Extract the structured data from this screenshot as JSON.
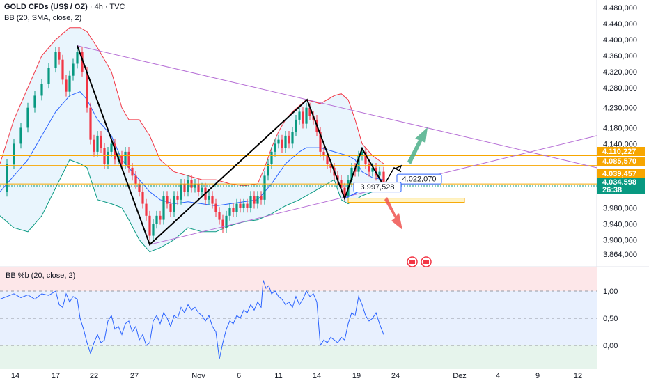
{
  "header": {
    "symbol": "GOLD CFDs (US$ / OZ)",
    "interval": "4h",
    "source": "TVC",
    "indicator_main": "BB (20, SMA, close, 2)",
    "indicator_sub": "BB %b (20, close, 2)"
  },
  "chart_data": {
    "type": "line",
    "price_axis": {
      "ticks": [
        "4.480,000",
        "4.440,000",
        "4.400,000",
        "4.360,000",
        "4.320,000",
        "4.280,000",
        "4.230,000",
        "4.180,000",
        "4.140,000",
        "3.980,000",
        "3.940,000",
        "3.900,000",
        "3.864,000"
      ],
      "tick_values": [
        4480,
        4440,
        4400,
        4360,
        4320,
        4280,
        4230,
        4180,
        4140,
        3980,
        3940,
        3900,
        3864
      ]
    },
    "price_tags": [
      {
        "label": "4.110,227",
        "value": 4110.227,
        "kind": "orange"
      },
      {
        "label": "4.085,570",
        "value": 4085.57,
        "kind": "orange"
      },
      {
        "label": "4.039,457",
        "value": 4039.457,
        "kind": "orange"
      },
      {
        "label": "4.034,598",
        "value": 4034.598,
        "kind": "green"
      },
      {
        "label": "26:38",
        "value": 4016,
        "kind": "green"
      }
    ],
    "chart_labels": [
      {
        "label": "4.022,070",
        "value": 4050
      },
      {
        "label": "3.997,528",
        "value": 4030
      }
    ],
    "x_axis_ticks": [
      "14",
      "17",
      "22",
      "27",
      "Nov",
      "6",
      "11",
      "14",
      "19",
      "24",
      "Dez",
      "4",
      "9",
      "12"
    ],
    "pctb_axis": {
      "ticks": [
        "1,00",
        "0,50",
        "0,00"
      ],
      "tick_values": [
        1.0,
        0.5,
        0.0
      ]
    },
    "zigzag": [
      [
        111,
        4385
      ],
      [
        215,
        3888
      ],
      [
        441,
        4250
      ],
      [
        495,
        4003
      ],
      [
        520,
        4128
      ],
      [
        551,
        4035
      ]
    ],
    "close": [
      [
        0,
        4020
      ],
      [
        10,
        4090
      ],
      [
        20,
        4140
      ],
      [
        30,
        4180
      ],
      [
        40,
        4230
      ],
      [
        50,
        4260
      ],
      [
        60,
        4290
      ],
      [
        70,
        4330
      ],
      [
        80,
        4370
      ],
      [
        85,
        4350
      ],
      [
        90,
        4300
      ],
      [
        95,
        4270
      ],
      [
        100,
        4310
      ],
      [
        105,
        4340
      ],
      [
        111,
        4370
      ],
      [
        118,
        4320
      ],
      [
        125,
        4230
      ],
      [
        130,
        4150
      ],
      [
        135,
        4120
      ],
      [
        140,
        4160
      ],
      [
        145,
        4130
      ],
      [
        150,
        4090
      ],
      [
        155,
        4120
      ],
      [
        160,
        4140
      ],
      [
        165,
        4100
      ],
      [
        170,
        4110
      ],
      [
        175,
        4090
      ],
      [
        180,
        4120
      ],
      [
        185,
        4080
      ],
      [
        190,
        4060
      ],
      [
        195,
        4040
      ],
      [
        200,
        4020
      ],
      [
        205,
        3990
      ],
      [
        210,
        3960
      ],
      [
        215,
        3910
      ],
      [
        220,
        3940
      ],
      [
        225,
        3960
      ],
      [
        230,
        3950
      ],
      [
        235,
        4010
      ],
      [
        240,
        3990
      ],
      [
        245,
        3970
      ],
      [
        250,
        4010
      ],
      [
        255,
        4000
      ],
      [
        260,
        4040
      ],
      [
        265,
        4020
      ],
      [
        270,
        4050
      ],
      [
        275,
        4030
      ],
      [
        280,
        4040
      ],
      [
        285,
        4020
      ],
      [
        290,
        4030
      ],
      [
        295,
        4000
      ],
      [
        300,
        4010
      ],
      [
        305,
        3990
      ],
      [
        310,
        3970
      ],
      [
        315,
        3950
      ],
      [
        320,
        3930
      ],
      [
        325,
        3960
      ],
      [
        330,
        3980
      ],
      [
        335,
        3970
      ],
      [
        340,
        3990
      ],
      [
        345,
        3980
      ],
      [
        350,
        3990
      ],
      [
        355,
        3980
      ],
      [
        360,
        4010
      ],
      [
        365,
        3990
      ],
      [
        370,
        4010
      ],
      [
        375,
        4000
      ],
      [
        380,
        4060
      ],
      [
        385,
        4090
      ],
      [
        390,
        4120
      ],
      [
        395,
        4140
      ],
      [
        400,
        4150
      ],
      [
        405,
        4130
      ],
      [
        410,
        4160
      ],
      [
        415,
        4140
      ],
      [
        420,
        4170
      ],
      [
        425,
        4200
      ],
      [
        430,
        4220
      ],
      [
        435,
        4190
      ],
      [
        440,
        4230
      ],
      [
        445,
        4210
      ],
      [
        450,
        4200
      ],
      [
        455,
        4170
      ],
      [
        460,
        4120
      ],
      [
        465,
        4110
      ],
      [
        470,
        4090
      ],
      [
        475,
        4080
      ],
      [
        480,
        4060
      ],
      [
        485,
        4050
      ],
      [
        490,
        4030
      ],
      [
        495,
        4010
      ],
      [
        500,
        4050
      ],
      [
        505,
        4080
      ],
      [
        510,
        4070
      ],
      [
        515,
        4110
      ],
      [
        520,
        4120
      ],
      [
        525,
        4090
      ],
      [
        530,
        4070
      ],
      [
        535,
        4080
      ],
      [
        540,
        4060
      ],
      [
        545,
        4070
      ],
      [
        551,
        4040
      ]
    ],
    "bb_upper": [
      [
        0,
        4090
      ],
      [
        20,
        4200
      ],
      [
        40,
        4280
      ],
      [
        60,
        4360
      ],
      [
        80,
        4400
      ],
      [
        100,
        4430
      ],
      [
        115,
        4430
      ],
      [
        125,
        4420
      ],
      [
        140,
        4380
      ],
      [
        160,
        4320
      ],
      [
        175,
        4230
      ],
      [
        185,
        4200
      ],
      [
        200,
        4200
      ],
      [
        215,
        4160
      ],
      [
        230,
        4100
      ],
      [
        250,
        4070
      ],
      [
        270,
        4060
      ],
      [
        290,
        4050
      ],
      [
        310,
        4050
      ],
      [
        330,
        4040
      ],
      [
        350,
        4035
      ],
      [
        370,
        4040
      ],
      [
        380,
        4080
      ],
      [
        390,
        4130
      ],
      [
        400,
        4170
      ],
      [
        410,
        4200
      ],
      [
        420,
        4220
      ],
      [
        440,
        4250
      ],
      [
        460,
        4240
      ],
      [
        480,
        4260
      ],
      [
        490,
        4265
      ],
      [
        500,
        4250
      ],
      [
        510,
        4200
      ],
      [
        520,
        4140
      ],
      [
        535,
        4110
      ],
      [
        551,
        4090
      ]
    ],
    "bb_lower": [
      [
        0,
        3960
      ],
      [
        20,
        3930
      ],
      [
        40,
        3920
      ],
      [
        60,
        3960
      ],
      [
        80,
        4030
      ],
      [
        100,
        4100
      ],
      [
        115,
        4090
      ],
      [
        125,
        4080
      ],
      [
        140,
        4000
      ],
      [
        160,
        3990
      ],
      [
        175,
        3980
      ],
      [
        185,
        3950
      ],
      [
        200,
        3900
      ],
      [
        215,
        3870
      ],
      [
        230,
        3880
      ],
      [
        250,
        3900
      ],
      [
        270,
        3930
      ],
      [
        290,
        3920
      ],
      [
        310,
        3920
      ],
      [
        330,
        3935
      ],
      [
        350,
        3945
      ],
      [
        370,
        3950
      ],
      [
        390,
        3965
      ],
      [
        410,
        3985
      ],
      [
        430,
        4000
      ],
      [
        440,
        4010
      ],
      [
        460,
        4030
      ],
      [
        480,
        4050
      ],
      [
        490,
        4000
      ],
      [
        500,
        3990
      ],
      [
        510,
        4000
      ],
      [
        520,
        4010
      ],
      [
        535,
        4020
      ],
      [
        551,
        4025
      ]
    ],
    "bb_basis": [
      [
        0,
        4020
      ],
      [
        20,
        4060
      ],
      [
        40,
        4100
      ],
      [
        60,
        4160
      ],
      [
        80,
        4220
      ],
      [
        100,
        4260
      ],
      [
        115,
        4270
      ],
      [
        125,
        4250
      ],
      [
        140,
        4200
      ],
      [
        160,
        4160
      ],
      [
        175,
        4100
      ],
      [
        185,
        4080
      ],
      [
        200,
        4050
      ],
      [
        215,
        4020
      ],
      [
        230,
        4000
      ],
      [
        250,
        3990
      ],
      [
        270,
        3995
      ],
      [
        290,
        3990
      ],
      [
        310,
        3985
      ],
      [
        330,
        3990
      ],
      [
        350,
        3995
      ],
      [
        370,
        4000
      ],
      [
        390,
        4040
      ],
      [
        410,
        4090
      ],
      [
        430,
        4120
      ],
      [
        440,
        4130
      ],
      [
        460,
        4130
      ],
      [
        480,
        4120
      ],
      [
        490,
        4115
      ],
      [
        500,
        4110
      ],
      [
        510,
        4100
      ],
      [
        520,
        4070
      ],
      [
        535,
        4055
      ],
      [
        551,
        4050
      ]
    ],
    "pctb": [
      [
        0,
        0.85
      ],
      [
        10,
        0.9
      ],
      [
        20,
        0.95
      ],
      [
        30,
        0.88
      ],
      [
        40,
        0.93
      ],
      [
        50,
        0.85
      ],
      [
        60,
        0.95
      ],
      [
        70,
        0.92
      ],
      [
        80,
        1.0
      ],
      [
        85,
        0.75
      ],
      [
        90,
        0.7
      ],
      [
        95,
        0.95
      ],
      [
        100,
        0.8
      ],
      [
        105,
        0.9
      ],
      [
        111,
        0.85
      ],
      [
        115,
        0.5
      ],
      [
        120,
        0.3
      ],
      [
        125,
        0.05
      ],
      [
        130,
        -0.15
      ],
      [
        135,
        0.05
      ],
      [
        140,
        0.2
      ],
      [
        145,
        0.05
      ],
      [
        150,
        0.1
      ],
      [
        155,
        0.45
      ],
      [
        160,
        0.55
      ],
      [
        165,
        0.3
      ],
      [
        170,
        0.35
      ],
      [
        175,
        0.2
      ],
      [
        180,
        0.4
      ],
      [
        185,
        0.45
      ],
      [
        190,
        0.25
      ],
      [
        195,
        0.35
      ],
      [
        200,
        0.1
      ],
      [
        205,
        0.2
      ],
      [
        210,
        0.0
      ],
      [
        215,
        0.05
      ],
      [
        220,
        0.45
      ],
      [
        225,
        0.55
      ],
      [
        230,
        0.4
      ],
      [
        235,
        0.6
      ],
      [
        240,
        0.5
      ],
      [
        245,
        0.35
      ],
      [
        250,
        0.55
      ],
      [
        255,
        0.5
      ],
      [
        260,
        0.7
      ],
      [
        265,
        0.6
      ],
      [
        270,
        0.75
      ],
      [
        275,
        0.65
      ],
      [
        280,
        0.7
      ],
      [
        285,
        0.6
      ],
      [
        290,
        0.55
      ],
      [
        295,
        0.45
      ],
      [
        300,
        0.55
      ],
      [
        305,
        0.35
      ],
      [
        310,
        0.25
      ],
      [
        315,
        -0.25
      ],
      [
        320,
        0.05
      ],
      [
        325,
        0.3
      ],
      [
        330,
        0.45
      ],
      [
        335,
        0.4
      ],
      [
        340,
        0.55
      ],
      [
        345,
        0.5
      ],
      [
        350,
        0.65
      ],
      [
        355,
        0.6
      ],
      [
        360,
        0.75
      ],
      [
        365,
        0.65
      ],
      [
        370,
        0.8
      ],
      [
        375,
        0.7
      ],
      [
        378,
        1.2
      ],
      [
        382,
        1.05
      ],
      [
        386,
        1.1
      ],
      [
        390,
        0.95
      ],
      [
        395,
        1.0
      ],
      [
        400,
        0.9
      ],
      [
        405,
        0.85
      ],
      [
        410,
        0.75
      ],
      [
        415,
        0.8
      ],
      [
        420,
        0.7
      ],
      [
        425,
        0.9
      ],
      [
        430,
        0.75
      ],
      [
        435,
        0.85
      ],
      [
        440,
        1.0
      ],
      [
        445,
        0.9
      ],
      [
        450,
        0.95
      ],
      [
        455,
        0.8
      ],
      [
        460,
        0.0
      ],
      [
        465,
        0.1
      ],
      [
        470,
        0.05
      ],
      [
        475,
        0.15
      ],
      [
        480,
        0.1
      ],
      [
        485,
        0.05
      ],
      [
        490,
        0.15
      ],
      [
        495,
        0.1
      ],
      [
        500,
        0.4
      ],
      [
        505,
        0.6
      ],
      [
        510,
        0.55
      ],
      [
        515,
        0.9
      ],
      [
        520,
        0.75
      ],
      [
        525,
        0.55
      ],
      [
        530,
        0.45
      ],
      [
        535,
        0.5
      ],
      [
        540,
        0.6
      ],
      [
        545,
        0.4
      ],
      [
        551,
        0.2
      ]
    ]
  },
  "colors": {
    "bull": "#089981",
    "bear": "#f23645",
    "bb_upper": "#f23645",
    "bb_lower": "#089981",
    "bb_basis": "#2962ff",
    "bb_fill": "#e3f2fd",
    "trendline": "#b66fd6",
    "level": "#f7a600",
    "pctb_line": "#2962ff",
    "zigzag": "#000000"
  }
}
